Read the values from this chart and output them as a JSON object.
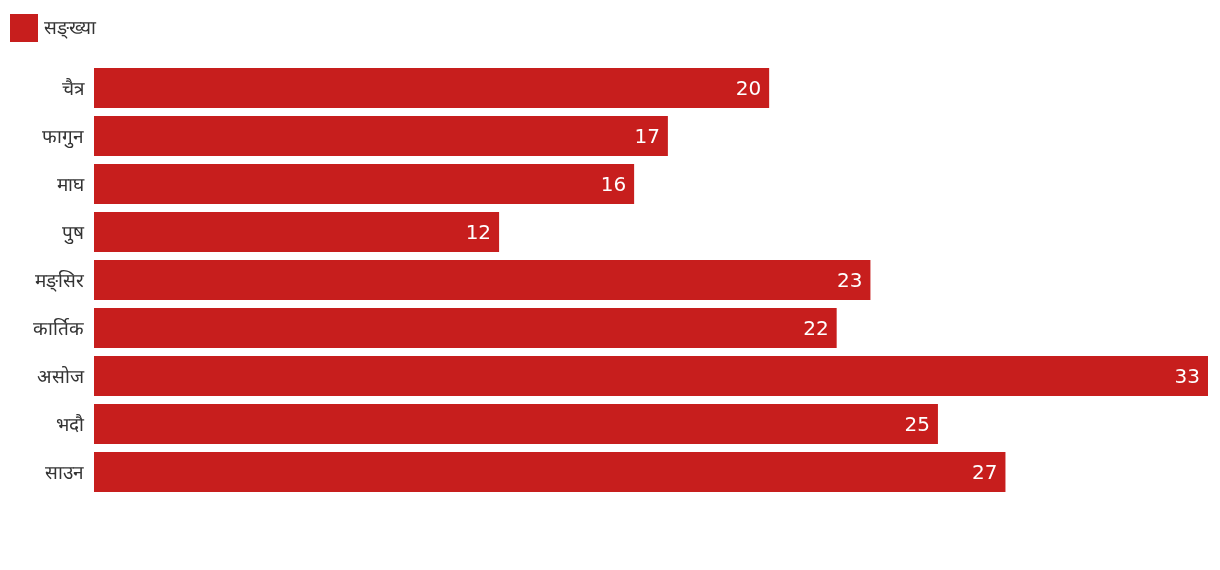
{
  "chart_data": {
    "type": "bar",
    "orientation": "horizontal",
    "data_labels": true,
    "legend": "top left",
    "categories": [
      "चैत्र",
      "फागुन",
      "माघ",
      "पुष",
      "मङ्सिर",
      "कार्तिक",
      "असोज",
      "भदौ",
      "साउन"
    ],
    "series": [
      {
        "name": "सङ्ख्या",
        "color": "#c71e1d",
        "values": [
          20,
          17,
          16,
          12,
          23,
          22,
          33,
          25,
          27
        ]
      }
    ]
  }
}
